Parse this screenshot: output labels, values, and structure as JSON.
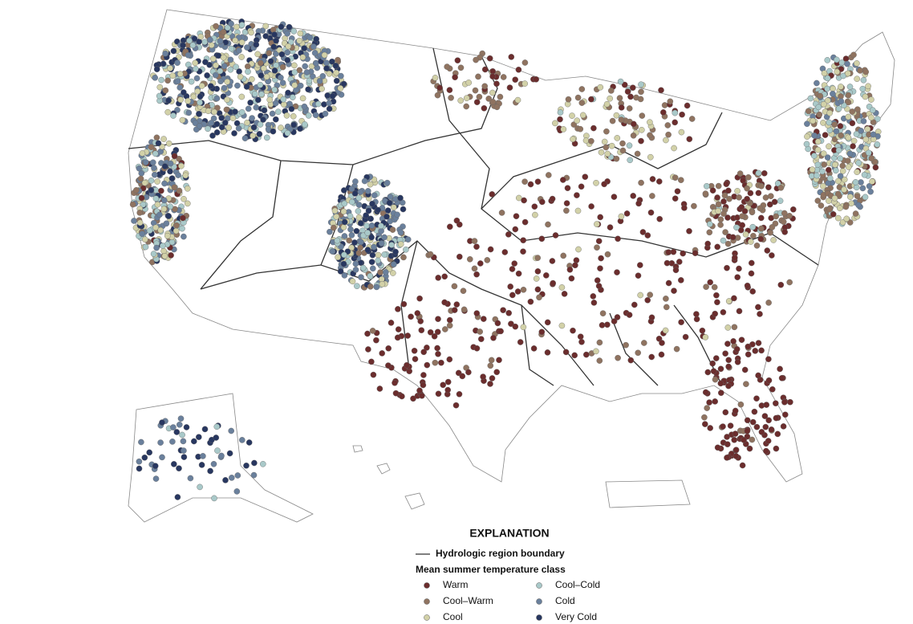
{
  "legend": {
    "title": "EXPLANATION",
    "boundary_label": "Hydrologic region boundary",
    "class_heading": "Mean summer temperature class",
    "classes": [
      {
        "name": "Warm",
        "color": "#6b2d2d"
      },
      {
        "name": "Cool–Warm",
        "color": "#8f7360"
      },
      {
        "name": "Cool",
        "color": "#d2d1a8"
      },
      {
        "name": "Cool–Cold",
        "color": "#a9c9c9"
      },
      {
        "name": "Cold",
        "color": "#6a809c"
      },
      {
        "name": "Very Cold",
        "color": "#283760"
      }
    ]
  }
}
